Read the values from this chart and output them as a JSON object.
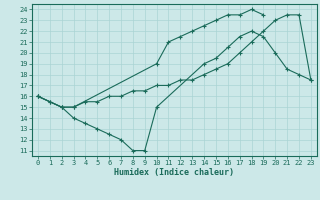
{
  "xlabel": "Humidex (Indice chaleur)",
  "bg_color": "#cce8e8",
  "line_color": "#1a6b5a",
  "grid_color": "#aad4d4",
  "xlim": [
    -0.5,
    23.5
  ],
  "ylim": [
    10.5,
    24.5
  ],
  "xticks": [
    0,
    1,
    2,
    3,
    4,
    5,
    6,
    7,
    8,
    9,
    10,
    11,
    12,
    13,
    14,
    15,
    16,
    17,
    18,
    19,
    20,
    21,
    22,
    23
  ],
  "yticks": [
    11,
    12,
    13,
    14,
    15,
    16,
    17,
    18,
    19,
    20,
    21,
    22,
    23,
    24
  ],
  "line1_x": [
    0,
    1,
    2,
    3,
    4,
    5,
    6,
    7,
    8,
    9,
    10,
    11,
    12,
    13,
    14,
    15,
    16,
    17,
    18,
    19,
    20,
    21,
    22,
    23
  ],
  "line1_y": [
    16.0,
    15.5,
    15.0,
    15.0,
    15.5,
    15.5,
    16.0,
    16.0,
    16.5,
    16.5,
    17.0,
    17.0,
    17.5,
    17.5,
    18.0,
    18.5,
    19.0,
    20.0,
    21.0,
    22.0,
    23.0,
    23.5,
    23.5,
    17.5
  ],
  "line2_x": [
    0,
    1,
    2,
    3,
    10,
    11,
    12,
    13,
    14,
    15,
    16,
    17,
    18,
    19
  ],
  "line2_y": [
    16.0,
    15.5,
    15.0,
    15.0,
    19.0,
    21.0,
    21.5,
    22.0,
    22.5,
    23.0,
    23.5,
    23.5,
    24.0,
    23.5
  ],
  "line3_x": [
    0,
    2,
    3,
    4,
    5,
    6,
    7,
    8,
    9,
    10,
    14,
    15,
    16,
    17,
    18,
    19,
    20,
    21,
    22,
    23
  ],
  "line3_y": [
    16.0,
    15.0,
    14.0,
    13.5,
    13.0,
    12.5,
    12.0,
    11.0,
    11.0,
    15.0,
    19.0,
    19.5,
    20.5,
    21.5,
    22.0,
    21.5,
    20.0,
    18.5,
    18.0,
    17.5
  ]
}
